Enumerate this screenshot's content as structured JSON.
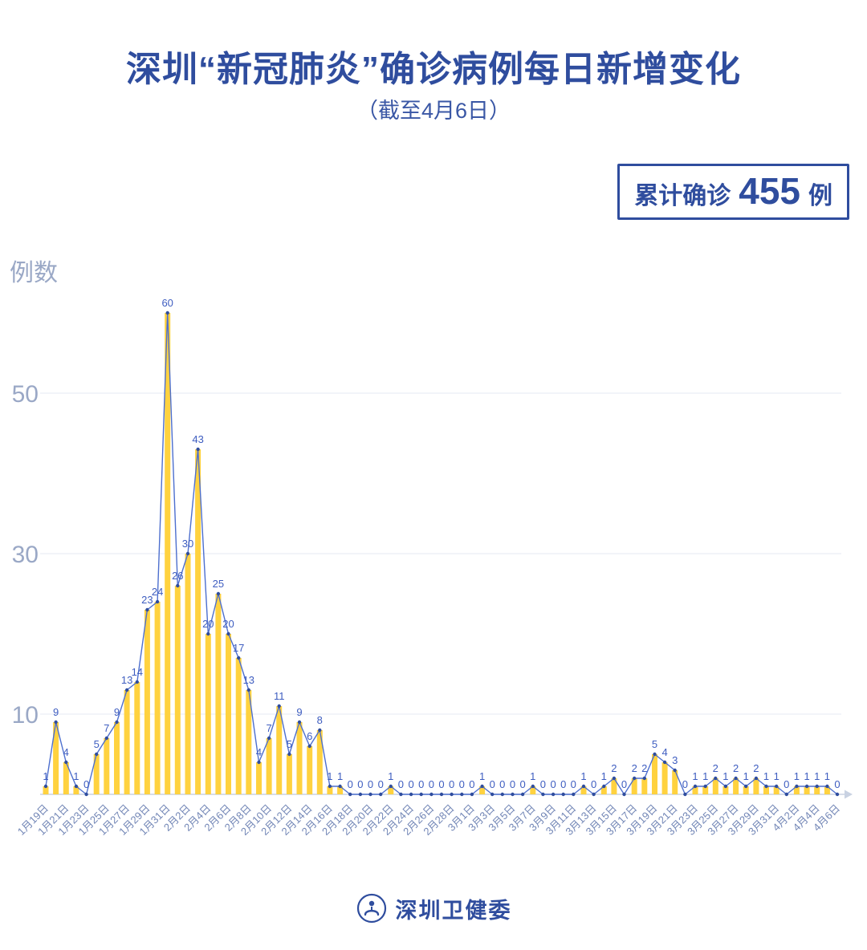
{
  "title": "深圳“新冠肺炎”确诊病例每日新增变化",
  "subtitle": "（截至4月6日）",
  "summary_badge": {
    "label": "累计确诊",
    "value": "455",
    "unit": "例"
  },
  "y_axis_label": "例数",
  "footer": {
    "brand": "深圳卫健委"
  },
  "colors": {
    "title": "#2F4D9E",
    "bar": "#FFD23F",
    "line": "#4D6FCE",
    "dot": "#2F4D9E",
    "point_label": "#3E5DC0",
    "grid": "#EBEEF5",
    "axis_line": "#C9D2E2",
    "axis_num": "#9AA8C6",
    "axis_date": "#7286B6"
  },
  "chart_data": {
    "type": "bar",
    "line_overlay": true,
    "title": "深圳“新冠肺炎”确诊病例每日新增变化（截至4月6日）",
    "xlabel": "",
    "ylabel": "例数",
    "ylim": [
      0,
      62
    ],
    "yticks": [
      10,
      30,
      50
    ],
    "grid": true,
    "legend": "none",
    "x_tick_every": 2,
    "total": 455,
    "categories": [
      "1月19日",
      "1月20日",
      "1月21日",
      "1月22日",
      "1月23日",
      "1月24日",
      "1月25日",
      "1月26日",
      "1月27日",
      "1月28日",
      "1月29日",
      "1月30日",
      "1月31日",
      "2月1日",
      "2月2日",
      "2月3日",
      "2月4日",
      "2月5日",
      "2月6日",
      "2月7日",
      "2月8日",
      "2月9日",
      "2月10日",
      "2月11日",
      "2月12日",
      "2月13日",
      "2月14日",
      "2月15日",
      "2月16日",
      "2月17日",
      "2月18日",
      "2月19日",
      "2月20日",
      "2月21日",
      "2月22日",
      "2月23日",
      "2月24日",
      "2月25日",
      "2月26日",
      "2月27日",
      "2月28日",
      "2月29日",
      "3月1日",
      "3月2日",
      "3月3日",
      "3月4日",
      "3月5日",
      "3月6日",
      "3月7日",
      "3月8日",
      "3月9日",
      "3月10日",
      "3月11日",
      "3月12日",
      "3月13日",
      "3月14日",
      "3月15日",
      "3月16日",
      "3月17日",
      "3月18日",
      "3月19日",
      "3月20日",
      "3月21日",
      "3月22日",
      "3月23日",
      "3月24日",
      "3月25日",
      "3月26日",
      "3月27日",
      "3月28日",
      "3月29日",
      "3月30日",
      "3月31日",
      "4月1日",
      "4月2日",
      "4月3日",
      "4月4日",
      "4月5日",
      "4月6日"
    ],
    "values": [
      1,
      9,
      4,
      1,
      0,
      5,
      7,
      9,
      13,
      14,
      23,
      24,
      60,
      26,
      30,
      43,
      20,
      25,
      20,
      17,
      13,
      4,
      7,
      11,
      5,
      9,
      6,
      8,
      1,
      1,
      0,
      0,
      0,
      0,
      1,
      0,
      0,
      0,
      0,
      0,
      0,
      0,
      0,
      1,
      0,
      0,
      0,
      0,
      1,
      0,
      0,
      0,
      0,
      1,
      0,
      1,
      2,
      0,
      2,
      2,
      5,
      4,
      3,
      0,
      1,
      1,
      2,
      1,
      2,
      1,
      2,
      1,
      1,
      0,
      1,
      1,
      1,
      1,
      0
    ]
  }
}
